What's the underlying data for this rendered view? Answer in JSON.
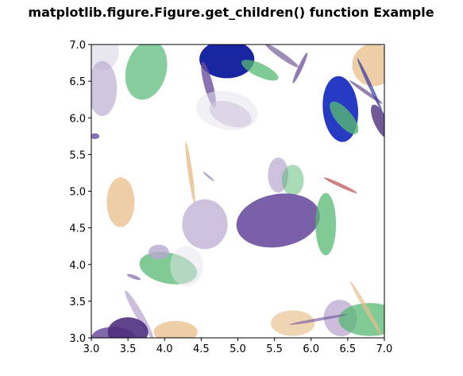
{
  "chart_data": {
    "type": "scatter",
    "title": "matplotlib.figure.Figure.get_children() function Example",
    "xlabel": "",
    "ylabel": "",
    "xlim": [
      3.0,
      7.0
    ],
    "ylim": [
      3.0,
      7.0
    ],
    "xticks": [
      "3.0",
      "3.5",
      "4.0",
      "4.5",
      "5.0",
      "5.5",
      "6.0",
      "6.5",
      "7.0"
    ],
    "yticks": [
      "3.0",
      "3.5",
      "4.0",
      "4.5",
      "5.0",
      "5.5",
      "6.0",
      "6.5",
      "7.0"
    ],
    "grid": false,
    "palette": {
      "green": "#56b873",
      "purple": "#6b4f9e",
      "lavender": "#b9a7cf",
      "tan": "#e8be8a",
      "blue": "#1a2fc0",
      "navy": "#0d1a9c",
      "darkpurple": "#4e2f7e",
      "red": "#b03030",
      "pale": "#e6e3ec"
    },
    "ellipses": [
      {
        "x": 3.15,
        "y": 6.9,
        "w": 0.45,
        "h": 0.5,
        "angle": 0,
        "color": "pale",
        "alpha": 0.9
      },
      {
        "x": 3.15,
        "y": 6.4,
        "w": 0.4,
        "h": 0.75,
        "angle": 0,
        "color": "lavender",
        "alpha": 0.65
      },
      {
        "x": 3.75,
        "y": 6.65,
        "w": 0.55,
        "h": 0.82,
        "angle": -15,
        "color": "green",
        "alpha": 0.7
      },
      {
        "x": 4.85,
        "y": 6.8,
        "w": 0.75,
        "h": 0.52,
        "angle": 0,
        "color": "navy",
        "alpha": 0.95
      },
      {
        "x": 5.6,
        "y": 6.85,
        "w": 0.55,
        "h": 0.08,
        "angle": -35,
        "color": "darkpurple",
        "alpha": 0.55
      },
      {
        "x": 5.3,
        "y": 6.65,
        "w": 0.55,
        "h": 0.18,
        "angle": -25,
        "color": "green",
        "alpha": 0.75
      },
      {
        "x": 5.85,
        "y": 6.68,
        "w": 0.06,
        "h": 0.46,
        "angle": -25,
        "color": "purple",
        "alpha": 0.75
      },
      {
        "x": 6.85,
        "y": 6.72,
        "w": 0.58,
        "h": 0.58,
        "angle": 0,
        "color": "tan",
        "alpha": 0.75
      },
      {
        "x": 4.6,
        "y": 6.45,
        "w": 0.12,
        "h": 0.65,
        "angle": 15,
        "color": "purple",
        "alpha": 0.8
      },
      {
        "x": 4.9,
        "y": 6.05,
        "w": 0.6,
        "h": 0.32,
        "angle": -20,
        "color": "lavender",
        "alpha": 0.65
      },
      {
        "x": 4.85,
        "y": 6.1,
        "w": 0.85,
        "h": 0.52,
        "angle": -10,
        "color": "pale",
        "alpha": 0.55
      },
      {
        "x": 6.4,
        "y": 6.12,
        "w": 0.48,
        "h": 0.9,
        "angle": 5,
        "color": "blue",
        "alpha": 0.95
      },
      {
        "x": 6.45,
        "y": 6.0,
        "w": 0.22,
        "h": 0.55,
        "angle": 40,
        "color": "green",
        "alpha": 0.8
      },
      {
        "x": 6.8,
        "y": 6.45,
        "w": 0.05,
        "h": 0.8,
        "angle": 25,
        "color": "navy",
        "alpha": 0.6
      },
      {
        "x": 6.75,
        "y": 6.35,
        "w": 0.55,
        "h": 0.05,
        "angle": -35,
        "color": "darkpurple",
        "alpha": 0.6
      },
      {
        "x": 6.95,
        "y": 5.95,
        "w": 0.18,
        "h": 0.5,
        "angle": 25,
        "color": "darkpurple",
        "alpha": 0.8
      },
      {
        "x": 4.35,
        "y": 5.25,
        "w": 0.06,
        "h": 0.85,
        "angle": 8,
        "color": "tan",
        "alpha": 0.8
      },
      {
        "x": 4.6,
        "y": 5.2,
        "w": 0.2,
        "h": 0.03,
        "angle": -40,
        "color": "purple",
        "alpha": 0.5
      },
      {
        "x": 5.55,
        "y": 5.22,
        "w": 0.28,
        "h": 0.48,
        "angle": 0,
        "color": "lavender",
        "alpha": 0.7
      },
      {
        "x": 5.75,
        "y": 5.15,
        "w": 0.3,
        "h": 0.42,
        "angle": 0,
        "color": "green",
        "alpha": 0.5
      },
      {
        "x": 6.4,
        "y": 5.08,
        "w": 0.5,
        "h": 0.05,
        "angle": -25,
        "color": "red",
        "alpha": 0.6
      },
      {
        "x": 3.4,
        "y": 4.85,
        "w": 0.38,
        "h": 0.68,
        "angle": 0,
        "color": "tan",
        "alpha": 0.75
      },
      {
        "x": 4.55,
        "y": 4.55,
        "w": 0.62,
        "h": 0.68,
        "angle": 0,
        "color": "lavender",
        "alpha": 0.7
      },
      {
        "x": 5.55,
        "y": 4.6,
        "w": 1.15,
        "h": 0.72,
        "angle": 10,
        "color": "purple",
        "alpha": 0.9
      },
      {
        "x": 6.2,
        "y": 4.55,
        "w": 0.28,
        "h": 0.85,
        "angle": 0,
        "color": "green",
        "alpha": 0.75
      },
      {
        "x": 4.05,
        "y": 3.95,
        "w": 0.8,
        "h": 0.42,
        "angle": -12,
        "color": "green",
        "alpha": 0.75
      },
      {
        "x": 3.92,
        "y": 4.17,
        "w": 0.28,
        "h": 0.2,
        "angle": 0,
        "color": "lavender",
        "alpha": 0.8
      },
      {
        "x": 4.3,
        "y": 3.98,
        "w": 0.45,
        "h": 0.55,
        "angle": 0,
        "color": "pale",
        "alpha": 0.5
      },
      {
        "x": 3.58,
        "y": 3.83,
        "w": 0.2,
        "h": 0.05,
        "angle": -20,
        "color": "purple",
        "alpha": 0.6
      },
      {
        "x": 3.65,
        "y": 3.32,
        "w": 0.1,
        "h": 0.75,
        "angle": 30,
        "color": "lavender",
        "alpha": 0.75
      },
      {
        "x": 3.3,
        "y": 3.0,
        "w": 0.6,
        "h": 0.3,
        "angle": 0,
        "color": "purple",
        "alpha": 0.85
      },
      {
        "x": 3.5,
        "y": 3.08,
        "w": 0.55,
        "h": 0.4,
        "angle": 0,
        "color": "darkpurple",
        "alpha": 0.9
      },
      {
        "x": 4.15,
        "y": 3.08,
        "w": 0.6,
        "h": 0.3,
        "angle": 0,
        "color": "tan",
        "alpha": 0.75
      },
      {
        "x": 5.75,
        "y": 3.2,
        "w": 0.6,
        "h": 0.35,
        "angle": 0,
        "color": "tan",
        "alpha": 0.65
      },
      {
        "x": 6.4,
        "y": 3.27,
        "w": 0.45,
        "h": 0.5,
        "angle": 15,
        "color": "lavender",
        "alpha": 0.75
      },
      {
        "x": 6.8,
        "y": 3.25,
        "w": 0.85,
        "h": 0.45,
        "angle": 0,
        "color": "green",
        "alpha": 0.75
      },
      {
        "x": 6.75,
        "y": 3.4,
        "w": 0.06,
        "h": 0.85,
        "angle": 30,
        "color": "tan",
        "alpha": 0.7
      },
      {
        "x": 6.1,
        "y": 3.25,
        "w": 0.8,
        "h": 0.04,
        "angle": 10,
        "color": "purple",
        "alpha": 0.6
      },
      {
        "x": 3.05,
        "y": 5.75,
        "w": 0.12,
        "h": 0.08,
        "angle": 0,
        "color": "purple",
        "alpha": 0.8
      }
    ]
  }
}
